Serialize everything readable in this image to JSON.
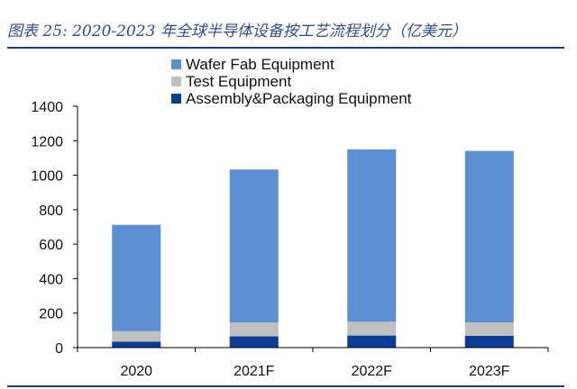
{
  "caption": "图表 25:  2020-2023 年全球半导体设备按工艺流程划分（亿美元）",
  "colors": {
    "wafer_fab": "#5B8FD1",
    "test": "#BFBFBF",
    "assembly": "#0B3C96",
    "rule": "#1f3d7a",
    "axis": "#000000"
  },
  "chart_data": {
    "type": "bar",
    "stacked": true,
    "categories": [
      "2020",
      "2021F",
      "2022F",
      "2023F"
    ],
    "series": [
      {
        "name": "Assembly&Packaging Equipment",
        "values": [
          35,
          65,
          70,
          68
        ]
      },
      {
        "name": "Test Equipment",
        "values": [
          60,
          80,
          80,
          78
        ]
      },
      {
        "name": "Wafer Fab Equipment",
        "values": [
          617,
          888,
          1000,
          995
        ]
      }
    ],
    "title": "",
    "xlabel": "",
    "ylabel": "",
    "ylim": [
      0,
      1400
    ],
    "yticks": [
      0,
      200,
      400,
      600,
      800,
      1000,
      1200,
      1400
    ],
    "legend_order": [
      "Wafer Fab Equipment",
      "Test Equipment",
      "Assembly&Packaging Equipment"
    ],
    "legend_position": "top-center",
    "grid": false
  }
}
